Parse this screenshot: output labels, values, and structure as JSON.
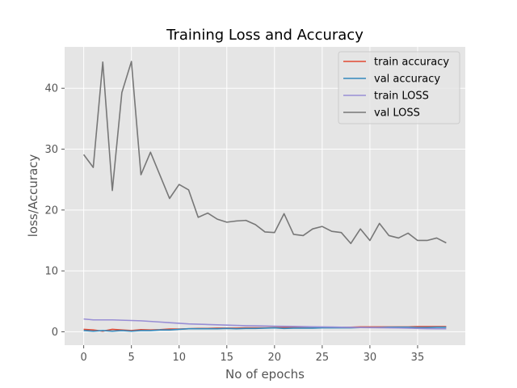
{
  "chart_data": {
    "type": "line",
    "title": "Training Loss and Accuracy",
    "xlabel": "No of epochs",
    "ylabel": "loss/Accuracy",
    "xlim": [
      -2,
      40
    ],
    "ylim": [
      -2.2,
      46.8
    ],
    "xticks": [
      0,
      5,
      10,
      15,
      20,
      25,
      30,
      35
    ],
    "yticks": [
      0,
      10,
      20,
      30,
      40
    ],
    "grid": true,
    "legend_position": "top-right",
    "x": [
      0,
      1,
      2,
      3,
      4,
      5,
      6,
      7,
      8,
      9,
      10,
      11,
      12,
      13,
      14,
      15,
      16,
      17,
      18,
      19,
      20,
      21,
      22,
      23,
      24,
      25,
      26,
      27,
      28,
      29,
      30,
      31,
      32,
      33,
      34,
      35,
      36,
      37,
      38
    ],
    "series": [
      {
        "name": "train accuracy",
        "color": "#E24A33",
        "values": [
          0.4,
          0.3,
          0.1,
          0.4,
          0.3,
          0.2,
          0.35,
          0.3,
          0.35,
          0.45,
          0.45,
          0.5,
          0.55,
          0.55,
          0.6,
          0.6,
          0.6,
          0.65,
          0.65,
          0.65,
          0.7,
          0.7,
          0.7,
          0.7,
          0.75,
          0.75,
          0.75,
          0.75,
          0.75,
          0.8,
          0.8,
          0.8,
          0.8,
          0.8,
          0.8,
          0.85,
          0.85,
          0.85,
          0.85
        ]
      },
      {
        "name": "val accuracy",
        "color": "#348ABD",
        "values": [
          0.2,
          0.1,
          0.2,
          0.1,
          0.2,
          0.1,
          0.2,
          0.2,
          0.3,
          0.3,
          0.4,
          0.5,
          0.5,
          0.5,
          0.5,
          0.55,
          0.5,
          0.55,
          0.55,
          0.6,
          0.65,
          0.55,
          0.6,
          0.6,
          0.6,
          0.65,
          0.65,
          0.65,
          0.65,
          0.7,
          0.7,
          0.7,
          0.75,
          0.75,
          0.75,
          0.7,
          0.7,
          0.75,
          0.75
        ]
      },
      {
        "name": "train LOSS",
        "color": "#988ED5",
        "values": [
          2.1,
          1.95,
          1.95,
          1.95,
          1.9,
          1.85,
          1.8,
          1.7,
          1.6,
          1.5,
          1.4,
          1.3,
          1.25,
          1.2,
          1.15,
          1.1,
          1.05,
          1.0,
          0.98,
          0.95,
          0.92,
          0.9,
          0.88,
          0.85,
          0.82,
          0.8,
          0.78,
          0.75,
          0.73,
          0.7,
          0.68,
          0.66,
          0.64,
          0.62,
          0.6,
          0.55,
          0.52,
          0.5,
          0.5
        ]
      },
      {
        "name": "val LOSS",
        "color": "#777777",
        "values": [
          29.1,
          27.0,
          44.3,
          23.2,
          39.3,
          44.4,
          25.8,
          29.5,
          25.7,
          21.9,
          24.2,
          23.3,
          18.8,
          19.5,
          18.5,
          18.0,
          18.2,
          18.3,
          17.6,
          16.4,
          16.3,
          19.4,
          16.0,
          15.8,
          16.9,
          17.3,
          16.5,
          16.3,
          14.5,
          16.9,
          15.0,
          17.8,
          15.8,
          15.4,
          16.2,
          15.0,
          15.0,
          15.4,
          14.6
        ]
      }
    ]
  }
}
